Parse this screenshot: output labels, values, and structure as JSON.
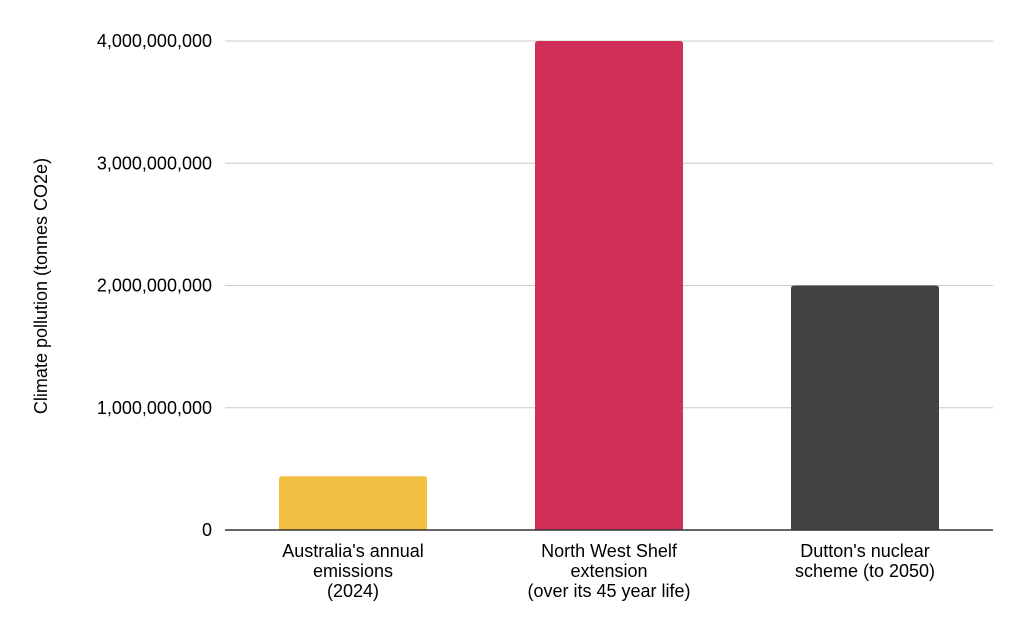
{
  "chart_data": {
    "type": "bar",
    "categories": [
      [
        "Australia's annual",
        "emissions",
        "(2024)"
      ],
      [
        "North West Shelf",
        "extension",
        "(over its 45 year life)"
      ],
      [
        "Dutton's nuclear",
        "scheme (to 2050)"
      ]
    ],
    "values": [
      440000000,
      4000000000,
      2000000000
    ],
    "colors": [
      "#F1C042",
      "#D12F57",
      "#424242"
    ],
    "ylabel": "Climate pollution (tonnes CO2e)",
    "xlabel": "",
    "ylim": [
      0,
      4000000000
    ],
    "yticks": [
      "0",
      "1,000,000,000",
      "2,000,000,000",
      "3,000,000,000",
      "4,000,000,000"
    ],
    "grid": true,
    "legend": "none"
  }
}
